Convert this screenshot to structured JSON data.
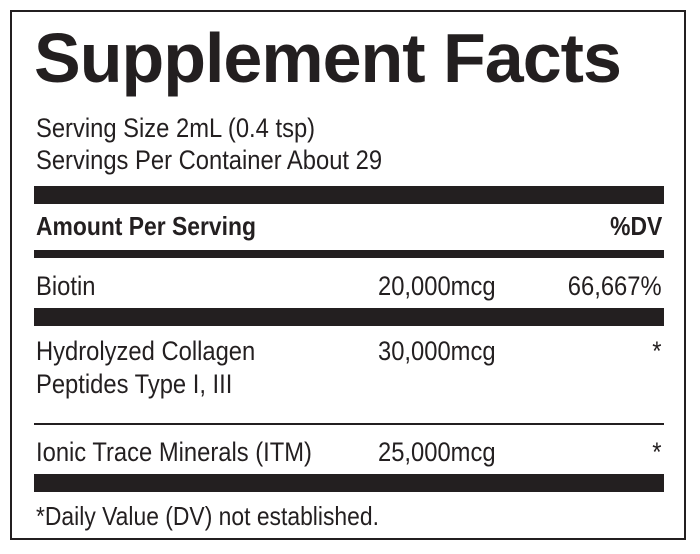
{
  "label": {
    "title": "Supplement Facts",
    "serving_size": "Serving Size 2mL (0.4 tsp)",
    "servings_per_container": "Servings Per Container About 29",
    "header": {
      "amount": "Amount Per Serving",
      "dv": "%DV"
    },
    "rows": [
      {
        "name": "Biotin",
        "amount": "20,000mcg",
        "dv": "66,667%"
      },
      {
        "name_line1": "Hydrolyzed Collagen",
        "name_line2": "Peptides Type I, III",
        "amount": "30,000mcg",
        "dv": "*"
      },
      {
        "name": "Ionic Trace Minerals (ITM)",
        "amount": "25,000mcg",
        "dv": "*"
      }
    ],
    "footnote": "*Daily Value (DV) not established."
  }
}
